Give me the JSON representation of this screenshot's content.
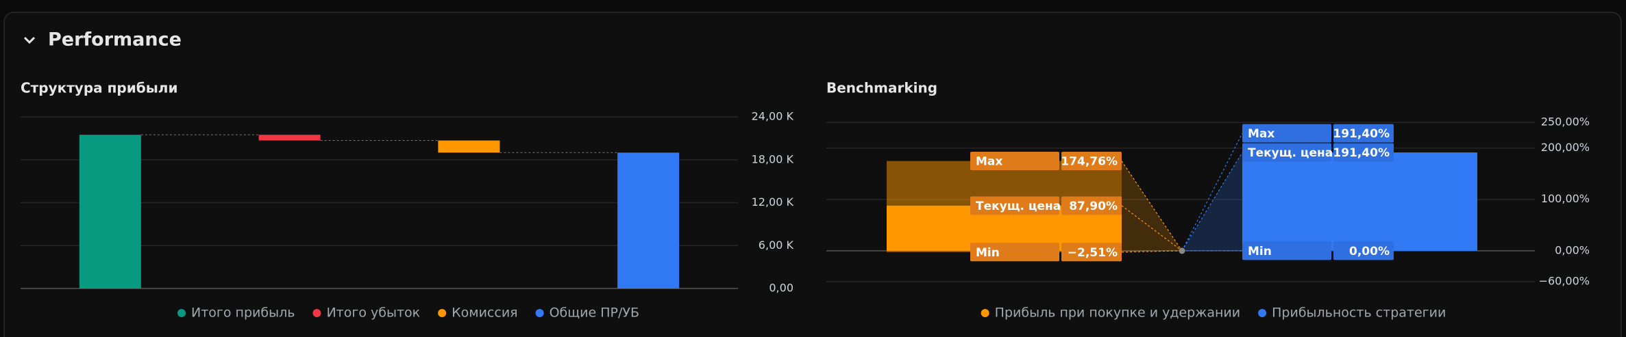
{
  "header": {
    "title": "Performance"
  },
  "chart_data": [
    {
      "type": "waterfall",
      "title": "Структура прибыли",
      "categories": [
        "Итого прибыль",
        "Итого убыток",
        "Комиссия",
        "Общие ПР/УБ"
      ],
      "values": [
        21500,
        -800,
        -1700,
        19000
      ],
      "colors": [
        "#089981",
        "#f23645",
        "#ff9800",
        "#3179f5"
      ],
      "ylim": [
        0,
        24000
      ],
      "yticks": [
        {
          "value": 0,
          "label": "0,00"
        },
        {
          "value": 6000,
          "label": "6,00 K"
        },
        {
          "value": 12000,
          "label": "12,00 K"
        },
        {
          "value": 18000,
          "label": "18,00 K"
        },
        {
          "value": 24000,
          "label": "24,00 K"
        }
      ],
      "grid": true
    },
    {
      "type": "range-bar",
      "title": "Benchmarking",
      "stat_labels": [
        "Max",
        "Текущ. цена",
        "Min"
      ],
      "series": [
        {
          "name": "Прибыль при покупке и удержании",
          "color": "#ff9800",
          "values": [
            174.76,
            87.9,
            -2.51
          ],
          "value_labels": [
            "174,76%",
            "87,90%",
            "−2,51%"
          ]
        },
        {
          "name": "Прибыльность стратегии",
          "color": "#3179f5",
          "values": [
            191.4,
            191.4,
            0.0
          ],
          "value_labels": [
            "191,40%",
            "191,40%",
            "0,00%"
          ]
        }
      ],
      "ylim": [
        -60,
        250
      ],
      "yticks": [
        {
          "value": -60,
          "label": "−60,00%"
        },
        {
          "value": 0,
          "label": "0,00%"
        },
        {
          "value": 100,
          "label": "100,00%"
        },
        {
          "value": 200,
          "label": "200,00%"
        },
        {
          "value": 250,
          "label": "250,00%"
        }
      ],
      "grid": true
    }
  ]
}
